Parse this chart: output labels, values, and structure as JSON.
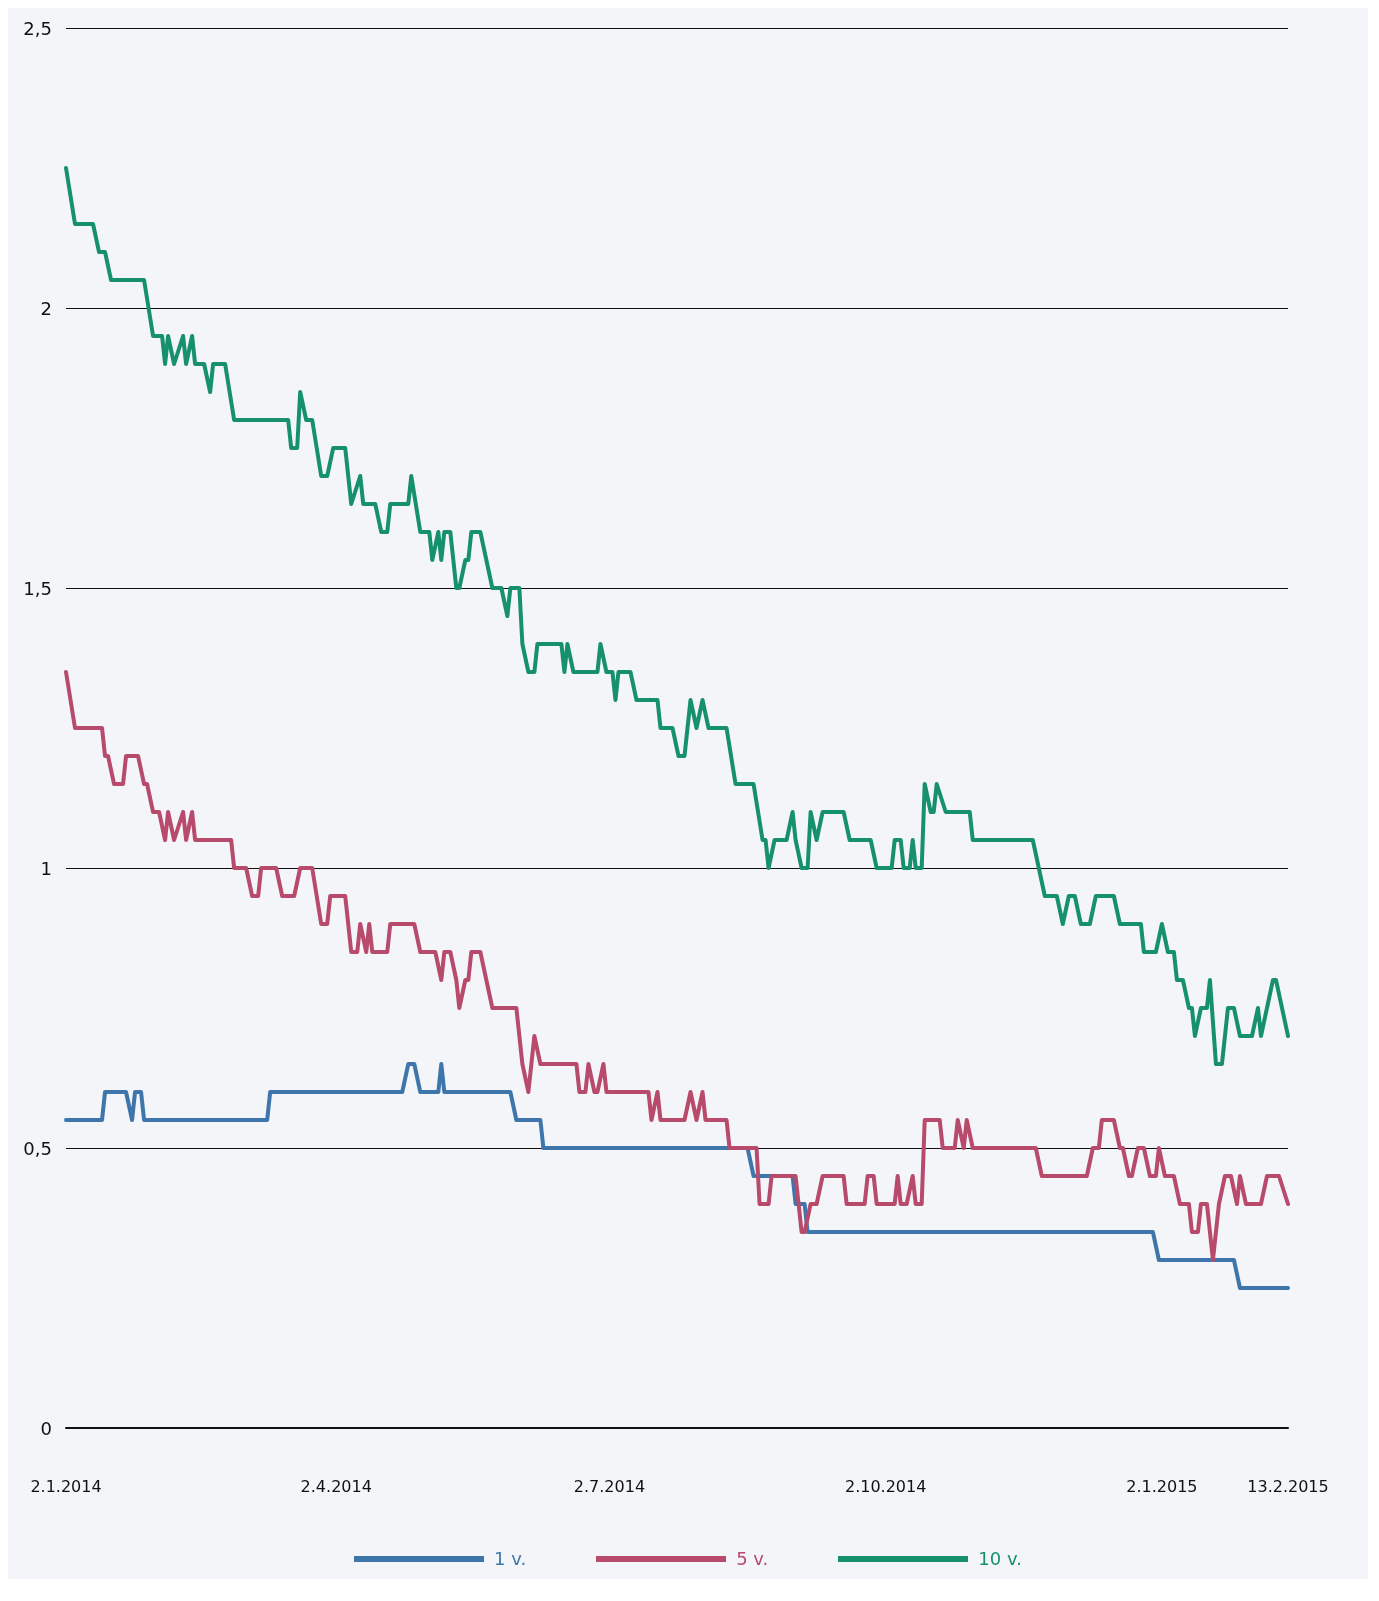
{
  "chart_data": {
    "type": "line",
    "xlim": [
      "2014-01-02",
      "2015-02-13"
    ],
    "xticks": [
      {
        "value": "2014-01-02",
        "label": "2.1.2014"
      },
      {
        "value": "2014-04-02",
        "label": "2.4.2014"
      },
      {
        "value": "2014-07-02",
        "label": "2.7.2014"
      },
      {
        "value": "2014-10-02",
        "label": "2.10.2014"
      },
      {
        "value": "2015-01-02",
        "label": "2.1.2015"
      },
      {
        "value": "2015-02-13",
        "label": "13.2.2015"
      }
    ],
    "ylim": [
      0,
      2.5
    ],
    "yticks": [
      0,
      {
        "value": 0.5,
        "label": "0,5"
      },
      1,
      {
        "value": 1.5,
        "label": "1,5"
      },
      2,
      {
        "value": 2.5,
        "label": "2,5"
      }
    ],
    "grid": "y",
    "legend": "bottom",
    "marker": "none",
    "line_style": "solid",
    "series": [
      {
        "name": "1 v.",
        "color": "#3e76ab",
        "x": [
          "2014-01-02",
          "2014-01-14",
          "2014-01-15",
          "2014-01-22",
          "2014-01-24",
          "2014-01-25",
          "2014-01-27",
          "2014-01-28",
          "2014-03-10",
          "2014-03-11",
          "2014-04-24",
          "2014-04-26",
          "2014-04-28",
          "2014-04-30",
          "2014-05-06",
          "2014-05-07",
          "2014-05-08",
          "2014-05-30",
          "2014-06-01",
          "2014-06-09",
          "2014-06-10",
          "2014-08-17",
          "2014-08-19",
          "2014-09-01",
          "2014-09-02",
          "2014-09-05",
          "2014-09-06",
          "2014-12-30",
          "2015-01-01",
          "2015-01-26",
          "2015-01-28",
          "2015-02-13"
        ],
        "values": [
          0.55,
          0.55,
          0.6,
          0.6,
          0.55,
          0.6,
          0.6,
          0.55,
          0.55,
          0.6,
          0.6,
          0.65,
          0.65,
          0.6,
          0.6,
          0.65,
          0.6,
          0.6,
          0.55,
          0.55,
          0.5,
          0.5,
          0.45,
          0.45,
          0.4,
          0.4,
          0.35,
          0.35,
          0.3,
          0.3,
          0.25,
          0.25
        ]
      },
      {
        "name": "5 v.",
        "color": "#b84a6c",
        "x": [
          "2014-01-02",
          "2014-01-05",
          "2014-01-14",
          "2014-01-15",
          "2014-01-16",
          "2014-01-18",
          "2014-01-21",
          "2014-01-22",
          "2014-01-26",
          "2014-01-28",
          "2014-01-29",
          "2014-01-31",
          "2014-02-02",
          "2014-02-04",
          "2014-02-05",
          "2014-02-07",
          "2014-02-10",
          "2014-02-11",
          "2014-02-13",
          "2014-02-14",
          "2014-02-26",
          "2014-02-27",
          "2014-03-03",
          "2014-03-05",
          "2014-03-07",
          "2014-03-08",
          "2014-03-13",
          "2014-03-15",
          "2014-03-19",
          "2014-03-21",
          "2014-03-25",
          "2014-03-28",
          "2014-03-30",
          "2014-03-31",
          "2014-04-05",
          "2014-04-07",
          "2014-04-09",
          "2014-04-10",
          "2014-04-12",
          "2014-04-13",
          "2014-04-14",
          "2014-04-19",
          "2014-04-20",
          "2014-04-28",
          "2014-04-30",
          "2014-05-05",
          "2014-05-07",
          "2014-05-08",
          "2014-05-10",
          "2014-05-12",
          "2014-05-13",
          "2014-05-15",
          "2014-05-16",
          "2014-05-17",
          "2014-05-20",
          "2014-05-22",
          "2014-05-24",
          "2014-06-01",
          "2014-06-03",
          "2014-06-05",
          "2014-06-06",
          "2014-06-07",
          "2014-06-09",
          "2014-06-21",
          "2014-06-22",
          "2014-06-24",
          "2014-06-25",
          "2014-06-27",
          "2014-06-28",
          "2014-06-30",
          "2014-07-01",
          "2014-07-15",
          "2014-07-16",
          "2014-07-18",
          "2014-07-19",
          "2014-07-27",
          "2014-07-29",
          "2014-07-31",
          "2014-08-02",
          "2014-08-03",
          "2014-08-10",
          "2014-08-11",
          "2014-08-20",
          "2014-08-21",
          "2014-08-24",
          "2014-08-25",
          "2014-09-02",
          "2014-09-04",
          "2014-09-05",
          "2014-09-07",
          "2014-09-09",
          "2014-09-11",
          "2014-09-18",
          "2014-09-19",
          "2014-09-25",
          "2014-09-26",
          "2014-09-28",
          "2014-09-29",
          "2014-10-05",
          "2014-10-06",
          "2014-10-07",
          "2014-10-09",
          "2014-10-11",
          "2014-10-12",
          "2014-10-14",
          "2014-10-15",
          "2014-10-20",
          "2014-10-21",
          "2014-10-25",
          "2014-10-26",
          "2014-10-28",
          "2014-10-29",
          "2014-10-31",
          "2014-11-21",
          "2014-11-23",
          "2014-12-08",
          "2014-12-10",
          "2014-12-12",
          "2014-12-13",
          "2014-12-17",
          "2014-12-19",
          "2014-12-20",
          "2014-12-22",
          "2014-12-23",
          "2014-12-25",
          "2014-12-27",
          "2014-12-29",
          "2014-12-31",
          "2015-01-01",
          "2015-01-03",
          "2015-01-06",
          "2015-01-08",
          "2015-01-11",
          "2015-01-12",
          "2015-01-14",
          "2015-01-15",
          "2015-01-17",
          "2015-01-19",
          "2015-01-21",
          "2015-01-23",
          "2015-01-25",
          "2015-01-27",
          "2015-01-28",
          "2015-01-30",
          "2015-02-04",
          "2015-02-06",
          "2015-02-10",
          "2015-02-13"
        ],
        "values": [
          1.35,
          1.25,
          1.25,
          1.2,
          1.2,
          1.15,
          1.15,
          1.2,
          1.2,
          1.15,
          1.15,
          1.1,
          1.1,
          1.05,
          1.1,
          1.05,
          1.1,
          1.05,
          1.1,
          1.05,
          1.05,
          1.0,
          1.0,
          0.95,
          0.95,
          1.0,
          1.0,
          0.95,
          0.95,
          1.0,
          1.0,
          0.9,
          0.9,
          0.95,
          0.95,
          0.85,
          0.85,
          0.9,
          0.85,
          0.9,
          0.85,
          0.85,
          0.9,
          0.9,
          0.85,
          0.85,
          0.8,
          0.85,
          0.85,
          0.8,
          0.75,
          0.8,
          0.8,
          0.85,
          0.85,
          0.8,
          0.75,
          0.75,
          0.65,
          0.6,
          0.65,
          0.7,
          0.65,
          0.65,
          0.6,
          0.6,
          0.65,
          0.6,
          0.6,
          0.65,
          0.6,
          0.6,
          0.55,
          0.6,
          0.55,
          0.55,
          0.6,
          0.55,
          0.6,
          0.55,
          0.55,
          0.5,
          0.5,
          0.4,
          0.4,
          0.45,
          0.45,
          0.35,
          0.35,
          0.4,
          0.4,
          0.45,
          0.45,
          0.4,
          0.4,
          0.45,
          0.45,
          0.4,
          0.4,
          0.45,
          0.4,
          0.4,
          0.45,
          0.4,
          0.4,
          0.55,
          0.55,
          0.5,
          0.5,
          0.55,
          0.5,
          0.55,
          0.5,
          0.5,
          0.45,
          0.45,
          0.5,
          0.5,
          0.55,
          0.55,
          0.5,
          0.5,
          0.45,
          0.45,
          0.5,
          0.5,
          0.45,
          0.45,
          0.5,
          0.45,
          0.45,
          0.4,
          0.4,
          0.35,
          0.35,
          0.4,
          0.4,
          0.3,
          0.4,
          0.45,
          0.45,
          0.4,
          0.45,
          0.4,
          0.4,
          0.45,
          0.45,
          0.4
        ]
      },
      {
        "name": "10 v.",
        "color": "#17906e",
        "x": [
          "2014-01-02",
          "2014-01-05",
          "2014-01-11",
          "2014-01-13",
          "2014-01-15",
          "2014-01-17",
          "2014-01-28",
          "2014-01-31",
          "2014-02-03",
          "2014-02-04",
          "2014-02-05",
          "2014-02-07",
          "2014-02-10",
          "2014-02-11",
          "2014-02-13",
          "2014-02-14",
          "2014-02-17",
          "2014-02-19",
          "2014-02-20",
          "2014-02-24",
          "2014-02-27",
          "2014-03-17",
          "2014-03-18",
          "2014-03-20",
          "2014-03-21",
          "2014-03-23",
          "2014-03-25",
          "2014-03-28",
          "2014-03-30",
          "2014-04-01",
          "2014-04-05",
          "2014-04-07",
          "2014-04-10",
          "2014-04-11",
          "2014-04-15",
          "2014-04-17",
          "2014-04-19",
          "2014-04-20",
          "2014-04-26",
          "2014-04-27",
          "2014-04-30",
          "2014-05-03",
          "2014-05-04",
          "2014-05-06",
          "2014-05-07",
          "2014-05-08",
          "2014-05-10",
          "2014-05-12",
          "2014-05-13",
          "2014-05-15",
          "2014-05-16",
          "2014-05-17",
          "2014-05-20",
          "2014-05-22",
          "2014-05-24",
          "2014-05-27",
          "2014-05-29",
          "2014-05-30",
          "2014-06-02",
          "2014-06-03",
          "2014-06-05",
          "2014-06-07",
          "2014-06-08",
          "2014-06-16",
          "2014-06-17",
          "2014-06-18",
          "2014-06-20",
          "2014-06-28",
          "2014-06-29",
          "2014-07-01",
          "2014-07-03",
          "2014-07-04",
          "2014-07-05",
          "2014-07-09",
          "2014-07-11",
          "2014-07-18",
          "2014-07-19",
          "2014-07-23",
          "2014-07-25",
          "2014-07-27",
          "2014-07-29",
          "2014-07-31",
          "2014-08-02",
          "2014-08-04",
          "2014-08-10",
          "2014-08-13",
          "2014-08-19",
          "2014-08-22",
          "2014-08-23",
          "2014-08-24",
          "2014-08-26",
          "2014-08-30",
          "2014-09-01",
          "2014-09-02",
          "2014-09-04",
          "2014-09-06",
          "2014-09-07",
          "2014-09-09",
          "2014-09-11",
          "2014-09-18",
          "2014-09-20",
          "2014-09-27",
          "2014-09-29",
          "2014-10-04",
          "2014-10-05",
          "2014-10-07",
          "2014-10-08",
          "2014-10-10",
          "2014-10-11",
          "2014-10-12",
          "2014-10-14",
          "2014-10-15",
          "2014-10-17",
          "2014-10-18",
          "2014-10-19",
          "2014-10-22",
          "2014-10-30",
          "2014-10-31",
          "2014-11-20",
          "2014-11-22",
          "2014-11-24",
          "2014-11-28",
          "2014-11-30",
          "2014-12-02",
          "2014-12-04",
          "2014-12-06",
          "2014-12-09",
          "2014-12-11",
          "2014-12-17",
          "2014-12-19",
          "2014-12-26",
          "2014-12-27",
          "2014-12-31",
          "2015-01-02",
          "2015-01-04",
          "2015-01-06",
          "2015-01-07",
          "2015-01-09",
          "2015-01-11",
          "2015-01-12",
          "2015-01-13",
          "2015-01-15",
          "2015-01-17",
          "2015-01-18",
          "2015-01-20",
          "2015-01-22",
          "2015-01-24",
          "2015-01-26",
          "2015-01-28",
          "2015-02-01",
          "2015-02-03",
          "2015-02-04",
          "2015-02-06",
          "2015-02-08",
          "2015-02-09",
          "2015-02-13"
        ],
        "values": [
          2.25,
          2.15,
          2.15,
          2.1,
          2.1,
          2.05,
          2.05,
          1.95,
          1.95,
          1.9,
          1.95,
          1.9,
          1.95,
          1.9,
          1.95,
          1.9,
          1.9,
          1.85,
          1.9,
          1.9,
          1.8,
          1.8,
          1.75,
          1.75,
          1.85,
          1.8,
          1.8,
          1.7,
          1.7,
          1.75,
          1.75,
          1.65,
          1.7,
          1.65,
          1.65,
          1.6,
          1.6,
          1.65,
          1.65,
          1.7,
          1.6,
          1.6,
          1.55,
          1.6,
          1.55,
          1.6,
          1.6,
          1.5,
          1.5,
          1.55,
          1.55,
          1.6,
          1.6,
          1.55,
          1.5,
          1.5,
          1.45,
          1.5,
          1.5,
          1.4,
          1.35,
          1.35,
          1.4,
          1.4,
          1.35,
          1.4,
          1.35,
          1.35,
          1.4,
          1.35,
          1.35,
          1.3,
          1.35,
          1.35,
          1.3,
          1.3,
          1.25,
          1.25,
          1.2,
          1.2,
          1.3,
          1.25,
          1.3,
          1.25,
          1.25,
          1.15,
          1.15,
          1.05,
          1.05,
          1.0,
          1.05,
          1.05,
          1.1,
          1.05,
          1.0,
          1.0,
          1.1,
          1.05,
          1.1,
          1.1,
          1.05,
          1.05,
          1.0,
          1.0,
          1.05,
          1.05,
          1.0,
          1.0,
          1.05,
          1.0,
          1.0,
          1.15,
          1.1,
          1.1,
          1.15,
          1.1,
          1.1,
          1.05,
          1.05,
          1.0,
          0.95,
          0.95,
          0.9,
          0.95,
          0.95,
          0.9,
          0.9,
          0.95,
          0.95,
          0.9,
          0.9,
          0.85,
          0.85,
          0.9,
          0.85,
          0.85,
          0.8,
          0.8,
          0.75,
          0.75,
          0.7,
          0.75,
          0.75,
          0.8,
          0.65,
          0.65,
          0.75,
          0.75,
          0.7,
          0.7,
          0.75,
          0.7,
          0.75,
          0.8,
          0.8,
          0.7
        ]
      }
    ]
  }
}
